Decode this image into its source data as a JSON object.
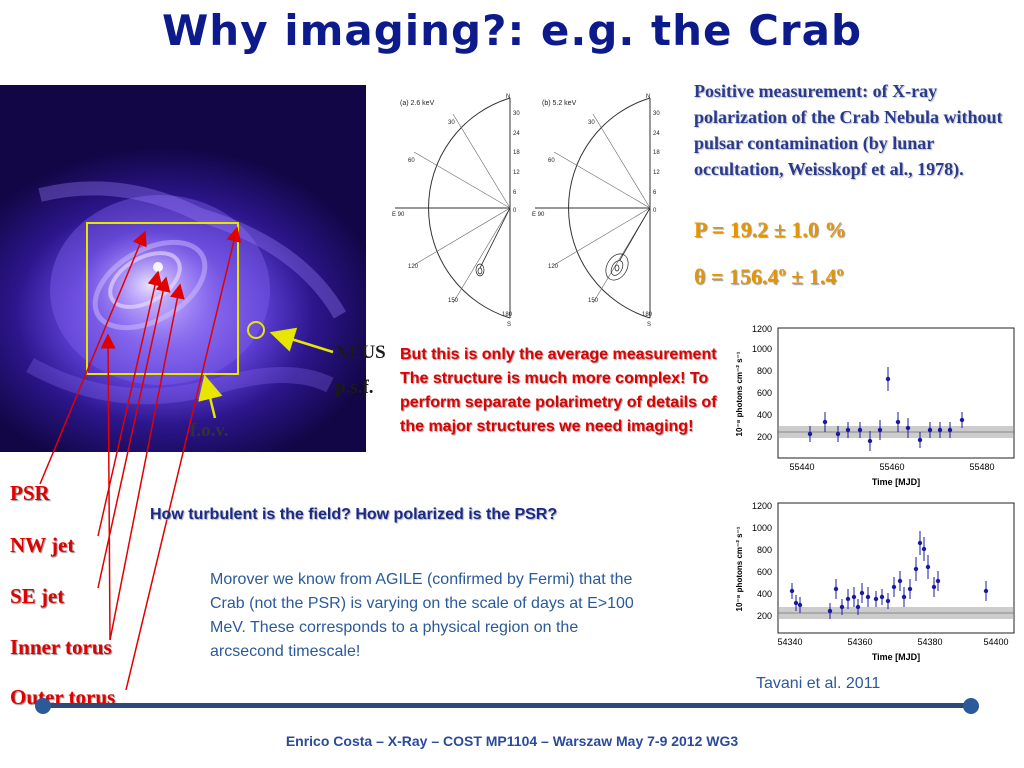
{
  "slide": {
    "title": "Why imaging?: e.g. the Crab"
  },
  "image_panel": {
    "xeus_label": "XEUS",
    "xeus_sub": "p.s.f.",
    "fov_label": "f.o.v."
  },
  "structures": [
    "PSR",
    "NW jet",
    "SE jet",
    "Inner torus",
    "Outer torus"
  ],
  "polar_plots": {
    "left_label": "(a)  2.6 keV",
    "right_label": "(b)  5.2 keV",
    "rim_labels": [
      "N",
      "30",
      "60",
      "E 90",
      "120",
      "150",
      "180",
      "S"
    ],
    "scale_labels": [
      "30",
      "24",
      "18",
      "12",
      "6",
      "0",
      "6",
      "12",
      "18",
      "24",
      "30"
    ]
  },
  "measurement": {
    "text": "Positive measurement: of X-ray polarization of the Crab Nebula without pulsar contamination (by lunar occultation, Weisskopf et al., 1978).",
    "p_value": "P = 19.2 ± 1.0 %",
    "theta_value": "θ = 156.4º ± 1.4º"
  },
  "note": "But this is only the average measurement The structure is much more complex! To perform separate polarimetry of details of the major structures we need imaging!",
  "question": "How turbulent is the field? How polarized is the PSR?",
  "morover": "Morover  we know from AGILE (confirmed by Fermi)  that the Crab (not the PSR) is varying on the scale of days at E>100 MeV.  These corresponds to a physical region on the arcsecond timescale!",
  "lightcurves": {
    "ylabel": "10⁻⁸ photons cm⁻² s⁻¹",
    "xlabel": "Time [MJD]",
    "plot1": {
      "xticks": [
        "55440",
        "55460",
        "55480"
      ],
      "yticks": [
        "200",
        "400",
        "600",
        "800",
        "1000",
        "1200"
      ]
    },
    "plot2": {
      "xticks": [
        "54340",
        "54360",
        "54380",
        "54400"
      ],
      "yticks": [
        "200",
        "400",
        "600",
        "800",
        "1000",
        "1200"
      ]
    }
  },
  "citation": "Tavani  et al. 2011",
  "footer": "Enrico Costa – X-Ray – COST MP1104  – Warszaw May 7-9 2012 WG3",
  "colors": {
    "title": "#0d1a8c",
    "structure_labels": "#e00000",
    "measurement": "#2a3b8f",
    "value_highlight": "#e69500",
    "fov_box": "#e6e600",
    "points": "#1a1aa0"
  }
}
